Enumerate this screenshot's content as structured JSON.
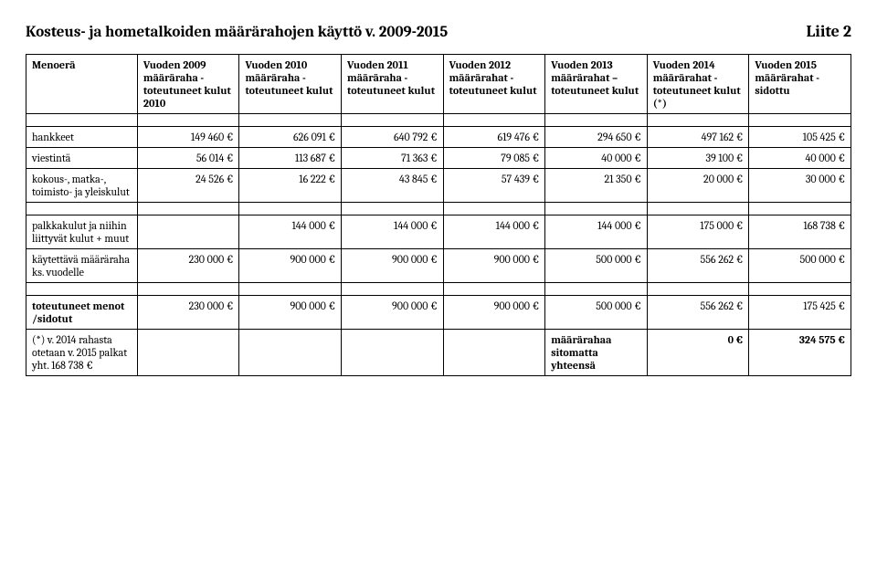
{
  "header": {
    "title": "Kosteus- ja hometalkoiden määrärahojen käyttö v. 2009-2015",
    "liite": "Liite 2"
  },
  "table": {
    "columns": [
      "Menoerä",
      "Vuoden 2009 määräraha - toteutuneet kulut 2010",
      "Vuoden 2010 määräraha - toteutuneet kulut",
      "Vuoden 2011 määräraha - toteutuneet kulut",
      "Vuoden 2012 määrärahat - toteutuneet kulut",
      "Vuoden 2013 määrärahat – toteutuneet kulut",
      "Vuoden 2014 määrärahat - toteutuneet kulut (*)",
      "Vuoden 2015 määrärahat - sidottu"
    ],
    "section1": [
      {
        "label": "hankkeet",
        "cells": [
          "149 460 €",
          "626 091 €",
          "640 792 €",
          "619 476 €",
          "294 650 €",
          "497 162 €",
          "105 425 €"
        ]
      },
      {
        "label": "viestintä",
        "cells": [
          "56 014 €",
          "113 687 €",
          "71 363 €",
          "79 085 €",
          "40 000 €",
          "39 100 €",
          "40 000 €"
        ]
      },
      {
        "label": "kokous-, matka-, toimisto- ja yleiskulut",
        "cells": [
          "24 526 €",
          "16 222 €",
          "43 845 €",
          "57 439 €",
          "21 350 €",
          "20 000 €",
          "30 000 €"
        ]
      }
    ],
    "section2": [
      {
        "label": "palkkakulut ja niihin liittyvät kulut + muut",
        "cells": [
          "",
          "144 000 €",
          "144 000 €",
          "144 000 €",
          "144 000 €",
          "175 000 €",
          "168 738 €"
        ]
      },
      {
        "label": "käytettävä määräraha ks. vuodelle",
        "cells": [
          "230 000 €",
          "900 000 €",
          "900 000 €",
          "900 000 €",
          "500 000 €",
          "556 262 €",
          "500 000 €"
        ]
      }
    ],
    "section3": [
      {
        "label": "toteutuneet menot /sidotut",
        "bold": true,
        "cells": [
          "230 000 €",
          "900 000 €",
          "900 000 €",
          "900 000 €",
          "500 000 €",
          "556 262 €",
          "175 425 €"
        ]
      }
    ],
    "footnote_row": {
      "label": "(*) v. 2014 rahasta otetaan v. 2015 palkat yht. 168 738 €",
      "note_label": "määrärahaa sitomatta yhteensä",
      "cells_tail": [
        "0 €",
        "324 575 €"
      ]
    }
  }
}
